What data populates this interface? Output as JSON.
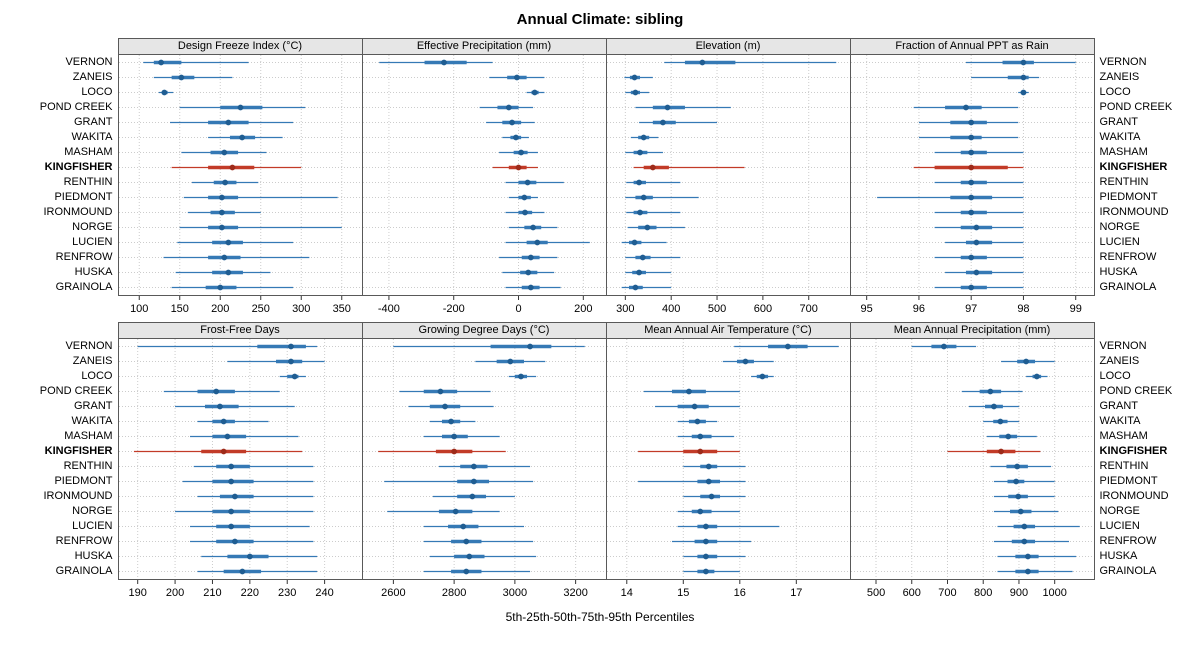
{
  "chart_data": {
    "type": "dotplot",
    "title": "Annual Climate: sibling",
    "caption": "5th-25th-50th-75th-95th Percentiles",
    "percentiles": [
      5,
      25,
      50,
      75,
      95
    ],
    "legend_position": "none",
    "grid": true,
    "stations": [
      "VERNON",
      "ZANEIS",
      "LOCO",
      "POND CREEK",
      "GRANT",
      "WAKITA",
      "MASHAM",
      "KINGFISHER",
      "RENTHIN",
      "PIEDMONT",
      "IRONMOUND",
      "NORGE",
      "LUCIEN",
      "RENFROW",
      "HUSKA",
      "GRAINOLA"
    ],
    "highlight_station": "KINGFISHER",
    "colors": {
      "normal": "#3579b5",
      "normal_dot": "#1f5d92",
      "highlight": "#c23b28",
      "highlight_dot": "#9e2b1a",
      "panel_header_bg": "#e6e6e6",
      "border": "#595959"
    },
    "panels": [
      {
        "title": "Design Freeze Index (°C)",
        "xlim": [
          75,
          375
        ],
        "ticks": [
          100,
          150,
          200,
          250,
          300,
          350
        ],
        "values": {
          "VERNON": [
            105,
            118,
            127,
            152,
            235
          ],
          "ZANEIS": [
            118,
            140,
            152,
            168,
            215
          ],
          "LOCO": [
            124,
            128,
            131,
            135,
            142
          ],
          "POND CREEK": [
            150,
            200,
            225,
            252,
            305
          ],
          "GRANT": [
            138,
            185,
            210,
            235,
            290
          ],
          "WAKITA": [
            185,
            212,
            227,
            243,
            277
          ],
          "MASHAM": [
            152,
            188,
            205,
            222,
            257
          ],
          "KINGFISHER": [
            140,
            185,
            215,
            242,
            300
          ],
          "RENTHIN": [
            165,
            192,
            206,
            220,
            247
          ],
          "PIEDMONT": [
            155,
            185,
            202,
            222,
            345
          ],
          "IRONMOUND": [
            160,
            188,
            202,
            218,
            250
          ],
          "NORGE": [
            150,
            185,
            202,
            222,
            350
          ],
          "LUCIEN": [
            147,
            190,
            210,
            228,
            290
          ],
          "RENFROW": [
            130,
            185,
            205,
            225,
            310
          ],
          "HUSKA": [
            145,
            190,
            210,
            228,
            262
          ],
          "GRAINOLA": [
            140,
            182,
            200,
            220,
            290
          ]
        }
      },
      {
        "title": "Effective Precipitation (mm)",
        "xlim": [
          -480,
          270
        ],
        "ticks": [
          -400,
          -200,
          0,
          200
        ],
        "values": {
          "VERNON": [
            -430,
            -290,
            -230,
            -160,
            -80
          ],
          "ZANEIS": [
            -90,
            -35,
            -5,
            25,
            80
          ],
          "LOCO": [
            25,
            40,
            50,
            62,
            80
          ],
          "POND CREEK": [
            -120,
            -65,
            -30,
            0,
            45
          ],
          "GRANT": [
            -100,
            -50,
            -20,
            8,
            50
          ],
          "WAKITA": [
            -50,
            -25,
            -8,
            8,
            32
          ],
          "MASHAM": [
            -60,
            -15,
            8,
            28,
            60
          ],
          "KINGFISHER": [
            -80,
            -30,
            0,
            25,
            60
          ],
          "RENTHIN": [
            -40,
            0,
            28,
            55,
            140
          ],
          "PIEDMONT": [
            -30,
            0,
            18,
            38,
            60
          ],
          "IRONMOUND": [
            -40,
            0,
            20,
            42,
            80
          ],
          "NORGE": [
            -30,
            18,
            45,
            70,
            120
          ],
          "LUCIEN": [
            -40,
            25,
            58,
            90,
            220
          ],
          "RENFROW": [
            -60,
            10,
            38,
            65,
            120
          ],
          "HUSKA": [
            -50,
            5,
            30,
            58,
            110
          ],
          "GRAINOLA": [
            -40,
            10,
            38,
            65,
            130
          ]
        }
      },
      {
        "title": "Elevation (m)",
        "xlim": [
          260,
          790
        ],
        "ticks": [
          300,
          400,
          500,
          600,
          700
        ],
        "values": {
          "VERNON": [
            385,
            430,
            468,
            540,
            760
          ],
          "ZANEIS": [
            298,
            310,
            320,
            332,
            360
          ],
          "LOCO": [
            300,
            312,
            322,
            332,
            352
          ],
          "POND CREEK": [
            322,
            360,
            392,
            430,
            530
          ],
          "GRANT": [
            330,
            360,
            382,
            410,
            500
          ],
          "WAKITA": [
            312,
            328,
            340,
            352,
            372
          ],
          "MASHAM": [
            300,
            318,
            332,
            348,
            382
          ],
          "KINGFISHER": [
            318,
            340,
            360,
            395,
            560
          ],
          "RENTHIN": [
            302,
            318,
            330,
            345,
            420
          ],
          "PIEDMONT": [
            300,
            322,
            340,
            360,
            460
          ],
          "IRONMOUND": [
            302,
            318,
            332,
            348,
            420
          ],
          "NORGE": [
            305,
            328,
            348,
            368,
            430
          ],
          "LUCIEN": [
            292,
            308,
            320,
            335,
            390
          ],
          "RENFROW": [
            300,
            322,
            338,
            355,
            420
          ],
          "HUSKA": [
            300,
            315,
            330,
            345,
            400
          ],
          "GRAINOLA": [
            292,
            308,
            322,
            338,
            400
          ]
        }
      },
      {
        "title": "Fraction of Annual PPT as Rain",
        "xlim": [
          94.7,
          99.35
        ],
        "ticks": [
          95,
          96,
          97,
          98,
          99
        ],
        "values": {
          "VERNON": [
            96.9,
            97.6,
            98.0,
            98.2,
            99.0
          ],
          "ZANEIS": [
            97.0,
            97.7,
            98.0,
            98.1,
            98.3
          ],
          "LOCO": [
            97.9,
            97.95,
            98.0,
            98.05,
            98.1
          ],
          "POND CREEK": [
            95.9,
            96.5,
            96.9,
            97.2,
            97.9
          ],
          "GRANT": [
            96.0,
            96.6,
            97.0,
            97.3,
            97.9
          ],
          "WAKITA": [
            96.0,
            96.6,
            97.0,
            97.2,
            97.9
          ],
          "MASHAM": [
            96.3,
            96.8,
            97.0,
            97.3,
            98.0
          ],
          "KINGFISHER": [
            95.9,
            96.3,
            97.0,
            97.7,
            98.0
          ],
          "RENTHIN": [
            96.3,
            96.8,
            97.0,
            97.3,
            98.0
          ],
          "PIEDMONT": [
            95.2,
            96.6,
            97.0,
            97.4,
            98.0
          ],
          "IRONMOUND": [
            96.3,
            96.8,
            97.0,
            97.3,
            98.0
          ],
          "NORGE": [
            96.3,
            96.8,
            97.1,
            97.4,
            98.0
          ],
          "LUCIEN": [
            96.5,
            96.9,
            97.1,
            97.4,
            98.0
          ],
          "RENFROW": [
            96.3,
            96.8,
            97.0,
            97.3,
            98.0
          ],
          "HUSKA": [
            96.5,
            96.9,
            97.1,
            97.4,
            98.0
          ],
          "GRAINOLA": [
            96.3,
            96.8,
            97.0,
            97.3,
            98.0
          ]
        }
      },
      {
        "title": "Frost-Free Days",
        "xlim": [
          185,
          250
        ],
        "ticks": [
          190,
          200,
          210,
          220,
          230,
          240
        ],
        "values": {
          "VERNON": [
            190,
            222,
            231,
            235,
            238
          ],
          "ZANEIS": [
            214,
            227,
            231,
            234,
            240
          ],
          "LOCO": [
            228,
            230,
            232,
            233,
            235
          ],
          "POND CREEK": [
            197,
            206,
            211,
            216,
            228
          ],
          "GRANT": [
            200,
            208,
            212,
            217,
            232
          ],
          "WAKITA": [
            206,
            210,
            213,
            216,
            225
          ],
          "MASHAM": [
            204,
            210,
            214,
            219,
            233
          ],
          "KINGFISHER": [
            189,
            207,
            213,
            219,
            234
          ],
          "RENTHIN": [
            205,
            211,
            215,
            220,
            237
          ],
          "PIEDMONT": [
            202,
            210,
            215,
            221,
            237
          ],
          "IRONMOUND": [
            206,
            212,
            216,
            221,
            237
          ],
          "NORGE": [
            200,
            210,
            215,
            220,
            237
          ],
          "LUCIEN": [
            204,
            211,
            215,
            220,
            236
          ],
          "RENFROW": [
            204,
            211,
            216,
            221,
            237
          ],
          "HUSKA": [
            207,
            214,
            220,
            225,
            238
          ],
          "GRAINOLA": [
            206,
            213,
            218,
            223,
            238
          ]
        }
      },
      {
        "title": "Growing Degree Days (°C)",
        "xlim": [
          2500,
          3300
        ],
        "ticks": [
          2600,
          2800,
          3000,
          3200
        ],
        "values": {
          "VERNON": [
            2600,
            2920,
            3050,
            3120,
            3230
          ],
          "ZANEIS": [
            2870,
            2940,
            2985,
            3030,
            3100
          ],
          "LOCO": [
            2980,
            3000,
            3020,
            3040,
            3070
          ],
          "POND CREEK": [
            2620,
            2700,
            2755,
            2810,
            2920
          ],
          "GRANT": [
            2650,
            2720,
            2770,
            2820,
            2930
          ],
          "WAKITA": [
            2720,
            2760,
            2790,
            2820,
            2870
          ],
          "MASHAM": [
            2700,
            2760,
            2800,
            2845,
            2950
          ],
          "KINGFISHER": [
            2550,
            2740,
            2800,
            2860,
            2970
          ],
          "RENTHIN": [
            2750,
            2820,
            2865,
            2910,
            3050
          ],
          "PIEDMONT": [
            2570,
            2810,
            2865,
            2915,
            3060
          ],
          "IRONMOUND": [
            2730,
            2810,
            2860,
            2905,
            3000
          ],
          "NORGE": [
            2580,
            2750,
            2805,
            2860,
            2950
          ],
          "LUCIEN": [
            2700,
            2780,
            2830,
            2880,
            3030
          ],
          "RENFROW": [
            2700,
            2790,
            2840,
            2890,
            3060
          ],
          "HUSKA": [
            2720,
            2800,
            2850,
            2900,
            3070
          ],
          "GRAINOLA": [
            2700,
            2790,
            2840,
            2890,
            3050
          ]
        }
      },
      {
        "title": "Mean Annual Air Temperature (°C)",
        "xlim": [
          13.65,
          17.95
        ],
        "ticks": [
          14,
          15,
          16,
          17
        ],
        "values": {
          "VERNON": [
            15.9,
            16.5,
            16.85,
            17.2,
            17.75
          ],
          "ZANEIS": [
            15.7,
            15.95,
            16.1,
            16.25,
            16.6
          ],
          "LOCO": [
            16.2,
            16.3,
            16.4,
            16.5,
            16.6
          ],
          "POND CREEK": [
            14.3,
            14.8,
            15.1,
            15.4,
            16.0
          ],
          "GRANT": [
            14.5,
            14.9,
            15.2,
            15.45,
            16.0
          ],
          "WAKITA": [
            14.9,
            15.1,
            15.25,
            15.4,
            15.6
          ],
          "MASHAM": [
            14.9,
            15.15,
            15.3,
            15.5,
            15.9
          ],
          "KINGFISHER": [
            14.2,
            15.0,
            15.3,
            15.6,
            16.0
          ],
          "RENTHIN": [
            15.0,
            15.3,
            15.45,
            15.6,
            16.1
          ],
          "PIEDMONT": [
            14.2,
            15.25,
            15.45,
            15.65,
            16.1
          ],
          "IRONMOUND": [
            15.0,
            15.3,
            15.5,
            15.65,
            16.1
          ],
          "NORGE": [
            14.9,
            15.15,
            15.3,
            15.5,
            16.0
          ],
          "LUCIEN": [
            14.9,
            15.25,
            15.4,
            15.6,
            16.7
          ],
          "RENFROW": [
            14.8,
            15.2,
            15.4,
            15.6,
            16.2
          ],
          "HUSKA": [
            15.0,
            15.25,
            15.4,
            15.6,
            16.1
          ],
          "GRAINOLA": [
            15.0,
            15.25,
            15.4,
            15.55,
            16.0
          ]
        }
      },
      {
        "title": "Mean Annual Precipitation (mm)",
        "xlim": [
          430,
          1110
        ],
        "ticks": [
          500,
          600,
          700,
          800,
          900,
          1000
        ],
        "values": {
          "VERNON": [
            600,
            655,
            690,
            725,
            780
          ],
          "ZANEIS": [
            850,
            895,
            920,
            945,
            1000
          ],
          "LOCO": [
            920,
            938,
            950,
            962,
            980
          ],
          "POND CREEK": [
            740,
            790,
            820,
            850,
            910
          ],
          "GRANT": [
            760,
            805,
            830,
            855,
            900
          ],
          "WAKITA": [
            800,
            828,
            848,
            868,
            900
          ],
          "MASHAM": [
            810,
            845,
            870,
            895,
            950
          ],
          "KINGFISHER": [
            700,
            810,
            850,
            890,
            960
          ],
          "RENTHIN": [
            820,
            865,
            895,
            925,
            990
          ],
          "PIEDMONT": [
            830,
            868,
            892,
            915,
            1000
          ],
          "IRONMOUND": [
            830,
            870,
            898,
            925,
            1000
          ],
          "NORGE": [
            830,
            875,
            905,
            935,
            1010
          ],
          "LUCIEN": [
            840,
            885,
            915,
            945,
            1070
          ],
          "RENFROW": [
            830,
            880,
            915,
            945,
            1040
          ],
          "HUSKA": [
            840,
            890,
            925,
            955,
            1060
          ],
          "GRAINOLA": [
            840,
            890,
            925,
            955,
            1050
          ]
        }
      }
    ]
  }
}
